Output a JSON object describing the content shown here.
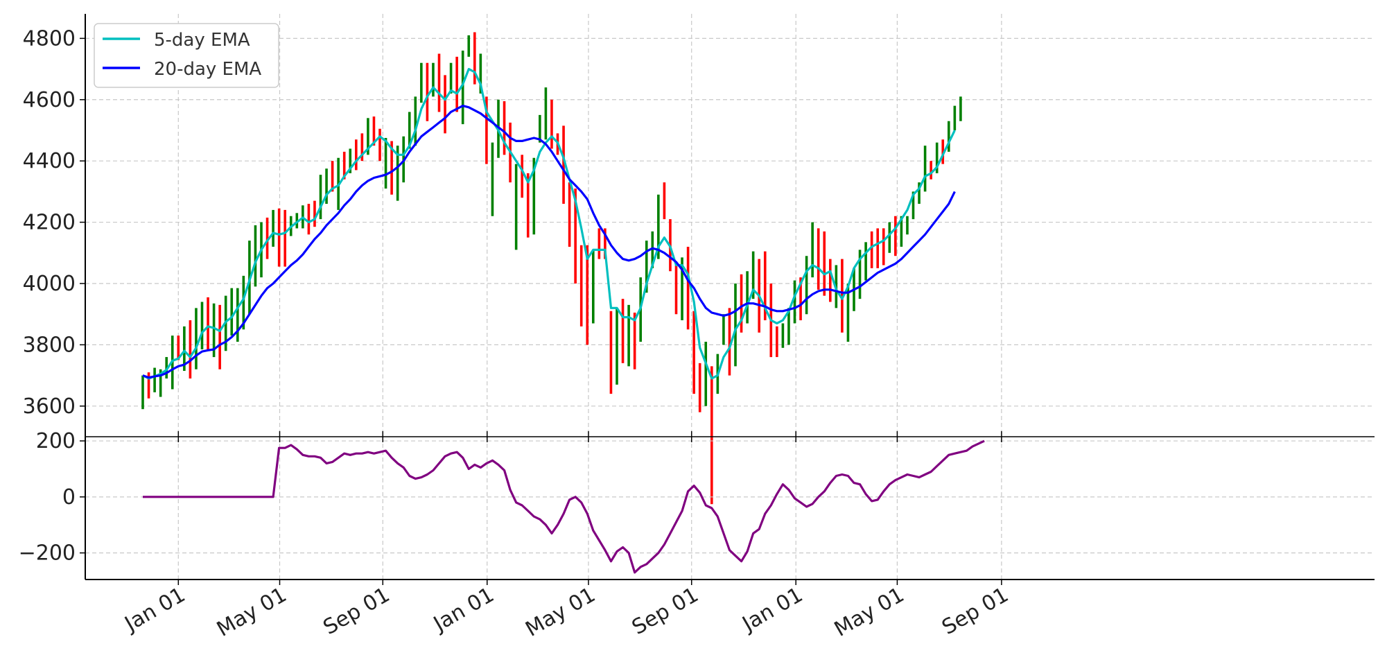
{
  "chart_data": [
    {
      "type": "bar",
      "subtype": "ohlc",
      "title": "",
      "xlabel": "",
      "ylabel": "",
      "ylim": [
        3500,
        4880
      ],
      "grid": true,
      "legend_position": "top-left",
      "x_ticks": [
        "Jan 01",
        "May 01",
        "Sep 01",
        "Jan 01",
        "May 01",
        "Sep 01",
        "Jan 01",
        "May 01",
        "Sep 01"
      ],
      "y_ticks": [
        3600,
        3800,
        4000,
        4200,
        4400,
        4600,
        4800
      ],
      "up_color": "#008000",
      "down_color": "#ff0000",
      "ohlc_bars": {
        "fields": [
          "low",
          "high",
          "up"
        ],
        "start_week": 0,
        "values": [
          [
            3590,
            3700,
            1
          ],
          [
            3625,
            3710,
            0
          ],
          [
            3645,
            3725,
            1
          ],
          [
            3630,
            3720,
            1
          ],
          [
            3690,
            3760,
            1
          ],
          [
            3655,
            3830,
            1
          ],
          [
            3750,
            3830,
            0
          ],
          [
            3715,
            3860,
            1
          ],
          [
            3690,
            3880,
            0
          ],
          [
            3720,
            3920,
            1
          ],
          [
            3785,
            3940,
            1
          ],
          [
            3780,
            3955,
            0
          ],
          [
            3760,
            3935,
            1
          ],
          [
            3720,
            3930,
            0
          ],
          [
            3780,
            3960,
            1
          ],
          [
            3830,
            3985,
            1
          ],
          [
            3810,
            3985,
            1
          ],
          [
            3850,
            4025,
            1
          ],
          [
            3900,
            4140,
            1
          ],
          [
            3990,
            4190,
            1
          ],
          [
            4020,
            4200,
            1
          ],
          [
            4080,
            4215,
            0
          ],
          [
            4120,
            4240,
            1
          ],
          [
            4055,
            4245,
            0
          ],
          [
            4055,
            4240,
            0
          ],
          [
            4155,
            4220,
            1
          ],
          [
            4180,
            4230,
            1
          ],
          [
            4180,
            4255,
            1
          ],
          [
            4160,
            4260,
            0
          ],
          [
            4185,
            4270,
            0
          ],
          [
            4210,
            4355,
            1
          ],
          [
            4260,
            4375,
            1
          ],
          [
            4300,
            4400,
            0
          ],
          [
            4240,
            4410,
            1
          ],
          [
            4340,
            4430,
            0
          ],
          [
            4360,
            4440,
            1
          ],
          [
            4370,
            4470,
            0
          ],
          [
            4400,
            4490,
            0
          ],
          [
            4420,
            4540,
            1
          ],
          [
            4450,
            4545,
            0
          ],
          [
            4400,
            4505,
            0
          ],
          [
            4310,
            4475,
            1
          ],
          [
            4290,
            4465,
            0
          ],
          [
            4270,
            4450,
            1
          ],
          [
            4330,
            4480,
            1
          ],
          [
            4440,
            4560,
            1
          ],
          [
            4450,
            4610,
            1
          ],
          [
            4590,
            4720,
            1
          ],
          [
            4530,
            4720,
            0
          ],
          [
            4610,
            4720,
            1
          ],
          [
            4560,
            4750,
            0
          ],
          [
            4490,
            4680,
            0
          ],
          [
            4620,
            4720,
            1
          ],
          [
            4560,
            4740,
            0
          ],
          [
            4520,
            4760,
            1
          ],
          [
            4740,
            4810,
            1
          ],
          [
            4650,
            4820,
            0
          ],
          [
            4620,
            4750,
            1
          ],
          [
            4390,
            4610,
            0
          ],
          [
            4220,
            4460,
            1
          ],
          [
            4410,
            4600,
            1
          ],
          [
            4420,
            4595,
            0
          ],
          [
            4330,
            4525,
            0
          ],
          [
            4110,
            4390,
            1
          ],
          [
            4280,
            4420,
            0
          ],
          [
            4150,
            4360,
            0
          ],
          [
            4160,
            4410,
            1
          ],
          [
            4460,
            4550,
            1
          ],
          [
            4470,
            4640,
            1
          ],
          [
            4440,
            4600,
            0
          ],
          [
            4420,
            4490,
            0
          ],
          [
            4260,
            4515,
            0
          ],
          [
            4120,
            4330,
            0
          ],
          [
            4000,
            4310,
            0
          ],
          [
            3860,
            4125,
            0
          ],
          [
            3800,
            4125,
            0
          ],
          [
            3870,
            4110,
            1
          ],
          [
            4080,
            4180,
            0
          ],
          [
            4080,
            4180,
            0
          ],
          [
            3640,
            3910,
            0
          ],
          [
            3670,
            3920,
            1
          ],
          [
            3740,
            3950,
            0
          ],
          [
            3730,
            3930,
            1
          ],
          [
            3720,
            3905,
            0
          ],
          [
            3810,
            4020,
            1
          ],
          [
            3970,
            4140,
            1
          ],
          [
            4050,
            4170,
            1
          ],
          [
            4080,
            4290,
            1
          ],
          [
            4210,
            4330,
            0
          ],
          [
            4040,
            4210,
            0
          ],
          [
            3900,
            4060,
            0
          ],
          [
            3880,
            4085,
            1
          ],
          [
            3850,
            4120,
            0
          ],
          [
            3640,
            3910,
            0
          ],
          [
            3580,
            3740,
            0
          ],
          [
            3600,
            3810,
            1
          ],
          [
            3280,
            3730,
            0
          ],
          [
            3640,
            3770,
            1
          ],
          [
            3800,
            3900,
            1
          ],
          [
            3700,
            3920,
            0
          ],
          [
            3730,
            4000,
            1
          ],
          [
            3840,
            4030,
            0
          ],
          [
            3870,
            4040,
            1
          ],
          [
            3950,
            4105,
            1
          ],
          [
            3840,
            4080,
            0
          ],
          [
            3880,
            4105,
            0
          ],
          [
            3760,
            4000,
            0
          ],
          [
            3760,
            3860,
            0
          ],
          [
            3790,
            3870,
            1
          ],
          [
            3800,
            3920,
            1
          ],
          [
            3870,
            4010,
            1
          ],
          [
            3880,
            4020,
            0
          ],
          [
            3900,
            4090,
            1
          ],
          [
            4020,
            4200,
            1
          ],
          [
            3980,
            4180,
            0
          ],
          [
            3960,
            4170,
            0
          ],
          [
            3940,
            4080,
            0
          ],
          [
            3920,
            4060,
            1
          ],
          [
            3840,
            4080,
            0
          ],
          [
            3810,
            4000,
            1
          ],
          [
            3910,
            4050,
            1
          ],
          [
            3950,
            4110,
            1
          ],
          [
            4010,
            4135,
            1
          ],
          [
            4050,
            4170,
            0
          ],
          [
            4050,
            4180,
            0
          ],
          [
            4060,
            4180,
            0
          ],
          [
            4100,
            4200,
            1
          ],
          [
            4090,
            4220,
            0
          ],
          [
            4120,
            4220,
            1
          ],
          [
            4160,
            4220,
            1
          ],
          [
            4210,
            4300,
            1
          ],
          [
            4260,
            4330,
            1
          ],
          [
            4300,
            4450,
            1
          ],
          [
            4340,
            4400,
            0
          ],
          [
            4360,
            4460,
            1
          ],
          [
            4390,
            4470,
            0
          ],
          [
            4430,
            4530,
            1
          ],
          [
            4500,
            4580,
            1
          ],
          [
            4530,
            4610,
            1
          ]
        ]
      },
      "series": [
        {
          "name": "5-day EMA",
          "color": "#00bfbf",
          "start_week": 0,
          "values": [
            3700,
            3690,
            3697,
            3705,
            3718,
            3748,
            3755,
            3780,
            3760,
            3790,
            3840,
            3860,
            3855,
            3845,
            3875,
            3890,
            3920,
            3950,
            4010,
            4070,
            4110,
            4140,
            4165,
            4160,
            4165,
            4185,
            4200,
            4215,
            4200,
            4210,
            4250,
            4290,
            4310,
            4320,
            4350,
            4375,
            4400,
            4420,
            4440,
            4460,
            4480,
            4465,
            4440,
            4420,
            4420,
            4450,
            4500,
            4570,
            4610,
            4640,
            4620,
            4600,
            4630,
            4620,
            4650,
            4700,
            4690,
            4650,
            4560,
            4530,
            4500,
            4460,
            4430,
            4400,
            4370,
            4330,
            4370,
            4430,
            4460,
            4480,
            4460,
            4410,
            4340,
            4270,
            4180,
            4080,
            4110,
            4110,
            4110,
            3920,
            3920,
            3890,
            3890,
            3880,
            3920,
            4000,
            4060,
            4120,
            4150,
            4120,
            4060,
            4060,
            4030,
            3940,
            3790,
            3740,
            3690,
            3700,
            3760,
            3790,
            3850,
            3880,
            3930,
            3980,
            3960,
            3920,
            3880,
            3870,
            3880,
            3910,
            3960,
            4000,
            4040,
            4060,
            4050,
            4030,
            4040,
            3980,
            3950,
            3990,
            4050,
            4080,
            4100,
            4120,
            4130,
            4140,
            4160,
            4180,
            4210,
            4240,
            4290,
            4310,
            4350,
            4360,
            4380,
            4420,
            4460,
            4500
          ]
        },
        {
          "name": "20-day EMA",
          "color": "#0000ff",
          "start_week": 0,
          "values": [
            3700,
            3693,
            3697,
            3700,
            3708,
            3720,
            3730,
            3735,
            3748,
            3765,
            3778,
            3782,
            3785,
            3800,
            3810,
            3825,
            3845,
            3870,
            3900,
            3930,
            3960,
            3985,
            4000,
            4020,
            4040,
            4060,
            4075,
            4095,
            4120,
            4145,
            4165,
            4190,
            4210,
            4230,
            4255,
            4275,
            4300,
            4320,
            4335,
            4345,
            4350,
            4355,
            4365,
            4380,
            4400,
            4430,
            4455,
            4480,
            4495,
            4510,
            4525,
            4540,
            4560,
            4570,
            4580,
            4575,
            4565,
            4555,
            4540,
            4525,
            4510,
            4495,
            4475,
            4465,
            4465,
            4470,
            4475,
            4470,
            4455,
            4430,
            4400,
            4370,
            4340,
            4320,
            4300,
            4275,
            4230,
            4190,
            4160,
            4125,
            4100,
            4080,
            4075,
            4080,
            4090,
            4105,
            4115,
            4110,
            4100,
            4085,
            4070,
            4045,
            4010,
            3985,
            3950,
            3920,
            3905,
            3900,
            3895,
            3900,
            3910,
            3925,
            3935,
            3935,
            3930,
            3925,
            3915,
            3910,
            3910,
            3915,
            3920,
            3930,
            3950,
            3965,
            3975,
            3980,
            3980,
            3975,
            3970,
            3970,
            3980,
            3990,
            4005,
            4020,
            4035,
            4045,
            4055,
            4065,
            4080,
            4100,
            4120,
            4140,
            4160,
            4185,
            4210,
            4235,
            4260,
            4300
          ]
        }
      ]
    },
    {
      "type": "line",
      "title": "",
      "xlabel": "",
      "ylabel": "",
      "ylim": [
        -295,
        215
      ],
      "grid": true,
      "x_ticks": [
        "Jan 01",
        "May 01",
        "Sep 01",
        "Jan 01",
        "May 01",
        "Sep 01",
        "Jan 01",
        "May 01",
        "Sep 01"
      ],
      "y_ticks": [
        200,
        0,
        -200
      ],
      "y_tick_labels": [
        "200",
        "0",
        "−200"
      ],
      "series": [
        {
          "color": "#800080",
          "start_week": 0,
          "values": [
            0,
            0,
            0,
            0,
            0,
            0,
            0,
            0,
            0,
            0,
            0,
            0,
            0,
            0,
            0,
            0,
            0,
            0,
            0,
            0,
            0,
            0,
            0,
            175,
            175,
            185,
            170,
            150,
            145,
            145,
            140,
            120,
            125,
            140,
            155,
            150,
            155,
            155,
            160,
            155,
            160,
            165,
            140,
            120,
            105,
            75,
            65,
            70,
            80,
            95,
            120,
            145,
            155,
            160,
            140,
            100,
            115,
            105,
            120,
            130,
            115,
            95,
            25,
            -20,
            -30,
            -50,
            -70,
            -80,
            -100,
            -130,
            -100,
            -60,
            -10,
            0,
            -20,
            -60,
            -120,
            -155,
            -190,
            -230,
            -195,
            -180,
            -200,
            -270,
            -250,
            -240,
            -220,
            -200,
            -170,
            -130,
            -90,
            -50,
            20,
            40,
            15,
            -30,
            -40,
            -70,
            -130,
            -190,
            -210,
            -230,
            -195,
            -130,
            -115,
            -60,
            -30,
            10,
            45,
            25,
            -5,
            -20,
            -35,
            -25,
            0,
            20,
            50,
            75,
            80,
            75,
            50,
            45,
            10,
            -15,
            -10,
            20,
            45,
            60,
            70,
            80,
            75,
            70,
            80,
            90,
            110,
            130,
            150,
            155,
            160,
            165,
            180,
            190,
            200
          ]
        }
      ]
    }
  ]
}
